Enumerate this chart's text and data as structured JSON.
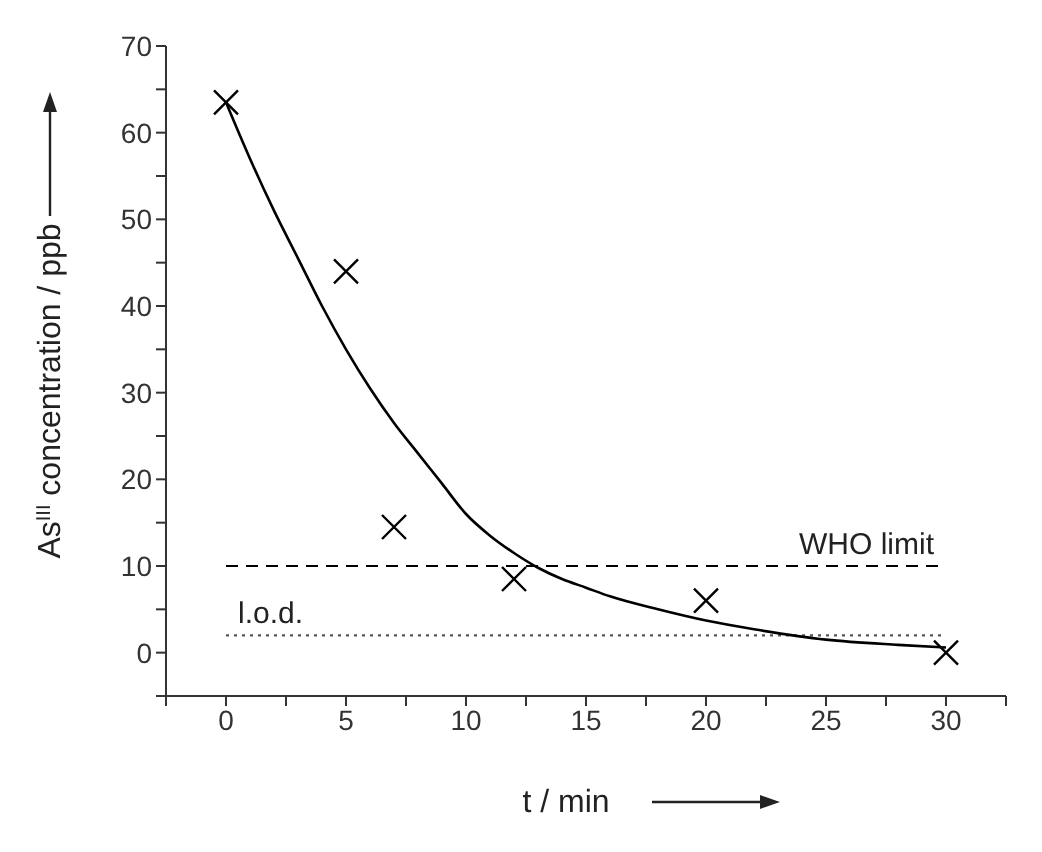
{
  "chart_data": {
    "type": "scatter",
    "xlabel": "t / min",
    "ylabel": "As$^{III}$ concentration / ppb",
    "series": [
      {
        "color": "#000000",
        "marker": "cross",
        "x": [
          0,
          5,
          7,
          12,
          20,
          30
        ],
        "values": [
          63.5,
          44,
          14.5,
          8.5,
          6,
          0
        ]
      },
      {
        "type": "line",
        "color": "#000000",
        "marker": "none",
        "line_style": "solid",
        "x": [
          0,
          1,
          2,
          3,
          4,
          5,
          6,
          7,
          8,
          9,
          10,
          11,
          12,
          13,
          14,
          15,
          16,
          18,
          20,
          22,
          25,
          28,
          30
        ],
        "values": [
          63.5,
          57,
          51,
          45.5,
          40,
          35,
          30.5,
          26.5,
          23,
          19.5,
          16,
          13.5,
          11.5,
          9.8,
          8.5,
          7.5,
          6.5,
          5,
          3.7,
          2.7,
          1.5,
          0.9,
          0.6
        ]
      }
    ],
    "ref_lines": [
      {
        "axis": "y",
        "value": 10,
        "label": "WHO limit",
        "color": "#000000",
        "line_style": "dashed"
      },
      {
        "axis": "y",
        "value": 2,
        "label": "l.o.d.",
        "color": "#555555",
        "line_style": "dotted"
      }
    ],
    "xlim": [
      -2.5,
      32.5
    ],
    "xticks": [
      {
        "value": -2.5,
        "label": null
      },
      0,
      {
        "value": 2.5,
        "label": null
      },
      5,
      {
        "value": 7.5,
        "label": null
      },
      10,
      {
        "value": 12.5,
        "label": null
      },
      15,
      {
        "value": 17.5,
        "label": null
      },
      20,
      {
        "value": 22.5,
        "label": null
      },
      25,
      {
        "value": 27.5,
        "label": null
      },
      30,
      {
        "value": 32.5,
        "label": null
      }
    ],
    "ylim": [
      -5,
      70
    ],
    "yticks": [
      {
        "value": -5,
        "label": null
      },
      0,
      {
        "value": 5,
        "label": null
      },
      10,
      {
        "value": 15,
        "label": null
      },
      20,
      {
        "value": 25,
        "label": null
      },
      30,
      {
        "value": 35,
        "label": null
      },
      40,
      {
        "value": 45,
        "label": null
      },
      50,
      {
        "value": 55,
        "label": null
      },
      60,
      {
        "value": 65,
        "label": null
      },
      70
    ],
    "grid": false
  }
}
